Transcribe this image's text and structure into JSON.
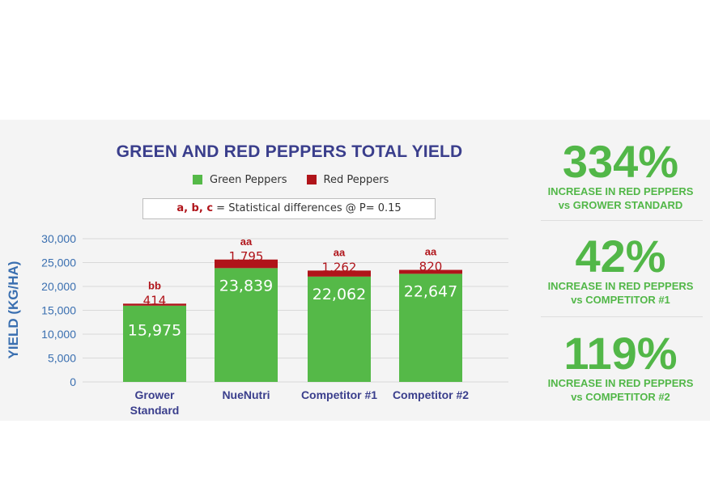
{
  "stats": [
    {
      "pct": "334%",
      "line1": "INCREASE IN RED PEPPERS",
      "line2": "vs GROWER STANDARD"
    },
    {
      "pct": "42%",
      "line1": "INCREASE IN RED PEPPERS",
      "line2": "vs COMPETITOR #1"
    },
    {
      "pct": "119%",
      "line1": "INCREASE IN RED PEPPERS",
      "line2": "vs COMPETITOR #2"
    }
  ],
  "note": {
    "letters": "a, b, c",
    "text": " = Statistical differences @ P= 0.15"
  },
  "colors": {
    "green": "#55b948",
    "red": "#b0141a",
    "title": "#3a3e8c",
    "axis": "#3a6fb0",
    "stat": "#52b748"
  },
  "chart_data": {
    "type": "bar",
    "stacked": true,
    "title": "GREEN AND RED PEPPERS TOTAL YIELD",
    "ylabel": "YIELD (KG/HA)",
    "xlabel": "",
    "ylim": [
      0,
      30000
    ],
    "yticks": [
      "30,000",
      "25,000",
      "20,000",
      "15,000",
      "10,000",
      "5,000",
      "0"
    ],
    "ytick_values": [
      30000,
      25000,
      20000,
      15000,
      10000,
      5000,
      0
    ],
    "categories": [
      "Grower Standard",
      "NueNutri",
      "Competitor #1",
      "Competitor #2"
    ],
    "category_lines": [
      [
        "Grower",
        "Standard"
      ],
      [
        "NueNutri"
      ],
      [
        "Competitor #1"
      ],
      [
        "Competitor #2"
      ]
    ],
    "series": [
      {
        "name": "Green Peppers",
        "values": [
          15975,
          23839,
          22062,
          22647
        ],
        "labels": [
          "15,975",
          "23,839",
          "22,062",
          "22,647"
        ]
      },
      {
        "name": "Red Peppers",
        "values": [
          414,
          1795,
          1262,
          820
        ],
        "labels": [
          "414",
          "1,795",
          "1,262",
          "820"
        ]
      }
    ],
    "significance": [
      "bb",
      "aa",
      "aa",
      "aa"
    ],
    "legend": "top",
    "grid": true
  }
}
